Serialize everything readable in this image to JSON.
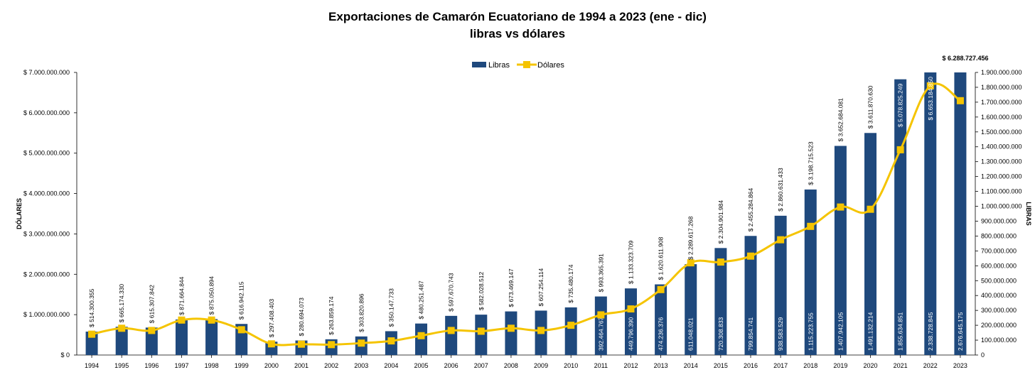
{
  "chart_data": {
    "type": "bar",
    "title": "Exportaciones de Camarón Ecuatoriano de 1994 a 2023 (ene - dic)",
    "subtitle": "libras vs dólares",
    "ylabel_left": "DÓLARES",
    "ylabel_right": "LIBRAS",
    "categories": [
      "1994",
      "1995",
      "1996",
      "1997",
      "1998",
      "1999",
      "2000",
      "2001",
      "2002",
      "2003",
      "2004",
      "2005",
      "2006",
      "2007",
      "2008",
      "2009",
      "2010",
      "2011",
      "2012",
      "2013",
      "2014",
      "2015",
      "2016",
      "2017",
      "2018",
      "2019",
      "2020",
      "2021",
      "2022",
      "2023"
    ],
    "series": [
      {
        "name": "Libras",
        "type": "bar",
        "axis": "left",
        "color": "#1F497D",
        "values": [
          580000000,
          700000000,
          680000000,
          880000000,
          890000000,
          770000000,
          330000000,
          360000000,
          390000000,
          460000000,
          590000000,
          780000000,
          970000000,
          1000000000,
          1080000000,
          1100000000,
          1180000000,
          1450000000,
          1650000000,
          1750000000,
          2250000000,
          2650000000,
          2950000000,
          3450000000,
          4100000000,
          5180000000,
          5500000000,
          6830000000,
          7000000000,
          7000000000
        ],
        "data_labels": [
          "",
          "",
          "",
          "",
          "",
          "",
          "",
          "",
          "",
          "",
          "",
          "",
          "",
          "",
          "",
          "",
          "",
          "392.464.767",
          "449.796.390",
          "474.236.376",
          "611.048.021",
          "720.308.833",
          "799.854.741",
          "938.583.529",
          "1.115.223.755",
          "1.407.942.105",
          "1.491.132.214",
          "1.855.634.851",
          "2.338.728.845",
          "2.676.645.175"
        ]
      },
      {
        "name": "Dólares",
        "type": "line",
        "axis": "right",
        "color": "#F5C400",
        "values": [
          140000000,
          180000000,
          165000000,
          235000000,
          235000000,
          170000000,
          75000000,
          73000000,
          70000000,
          80000000,
          95000000,
          130000000,
          165000000,
          160000000,
          180000000,
          165000000,
          200000000,
          270000000,
          310000000,
          440000000,
          620000000,
          625000000,
          665000000,
          775000000,
          865000000,
          995000000,
          980000000,
          1380000000,
          1810000000,
          1710000000
        ],
        "data_labels": [
          "$ 514.300.355",
          "$ 665.174.330",
          "$ 615.307.842",
          "$ 871.664.844",
          "$ 875.050.894",
          "$ 616.942.115",
          "$ 297.408.403",
          "$ 280.694.073",
          "$ 263.859.174",
          "$ 303.820.896",
          "$ 350.147.733",
          "$ 480.251.487",
          "$ 597.670.743",
          "$ 582.028.512",
          "$ 673.469.147",
          "$ 607.254.114",
          "$ 735.480.174",
          "$ 993.365.391",
          "$ 1.133.323.709",
          "$ 1.620.611.908",
          "$ 2.289.617.268",
          "$ 2.304.901.984",
          "$ 2.455.284.864",
          "$ 2.860.631.433",
          "$ 3.198.715.523",
          "$ 3.652.684.081",
          "$ 3.611.870.630",
          "$ 5.078.825.249",
          "$ 6.653.184.850",
          ""
        ]
      }
    ],
    "annotation": "$ 6.288.727.456",
    "left_axis": {
      "ylim": [
        0,
        7000000000
      ],
      "ticks": [
        0,
        1000000000,
        2000000000,
        3000000000,
        4000000000,
        5000000000,
        6000000000,
        7000000000
      ],
      "tick_labels": [
        "$ 0",
        "$ 1.000.000.000",
        "$ 2.000.000.000",
        "$ 3.000.000.000",
        "$ 4.000.000.000",
        "$ 5.000.000.000",
        "$ 6.000.000.000",
        "$ 7.000.000.000"
      ]
    },
    "right_axis": {
      "ylim": [
        0,
        1900000000
      ],
      "ticks": [
        0,
        100000000,
        200000000,
        300000000,
        400000000,
        500000000,
        600000000,
        700000000,
        800000000,
        900000000,
        1000000000,
        1100000000,
        1200000000,
        1300000000,
        1400000000,
        1500000000,
        1600000000,
        1700000000,
        1800000000,
        1900000000
      ],
      "tick_labels": [
        "0",
        "100.000.000",
        "200.000.000",
        "300.000.000",
        "400.000.000",
        "500.000.000",
        "600.000.000",
        "700.000.000",
        "800.000.000",
        "900.000.000",
        "1.000.000.000",
        "1.100.000.000",
        "1.200.000.000",
        "1.300.000.000",
        "1.400.000.000",
        "1.500.000.000",
        "1.600.000.000",
        "1.700.000.000",
        "1.800.000.000",
        "1.900.000.000"
      ]
    },
    "grid": false,
    "legend": "top-center"
  }
}
